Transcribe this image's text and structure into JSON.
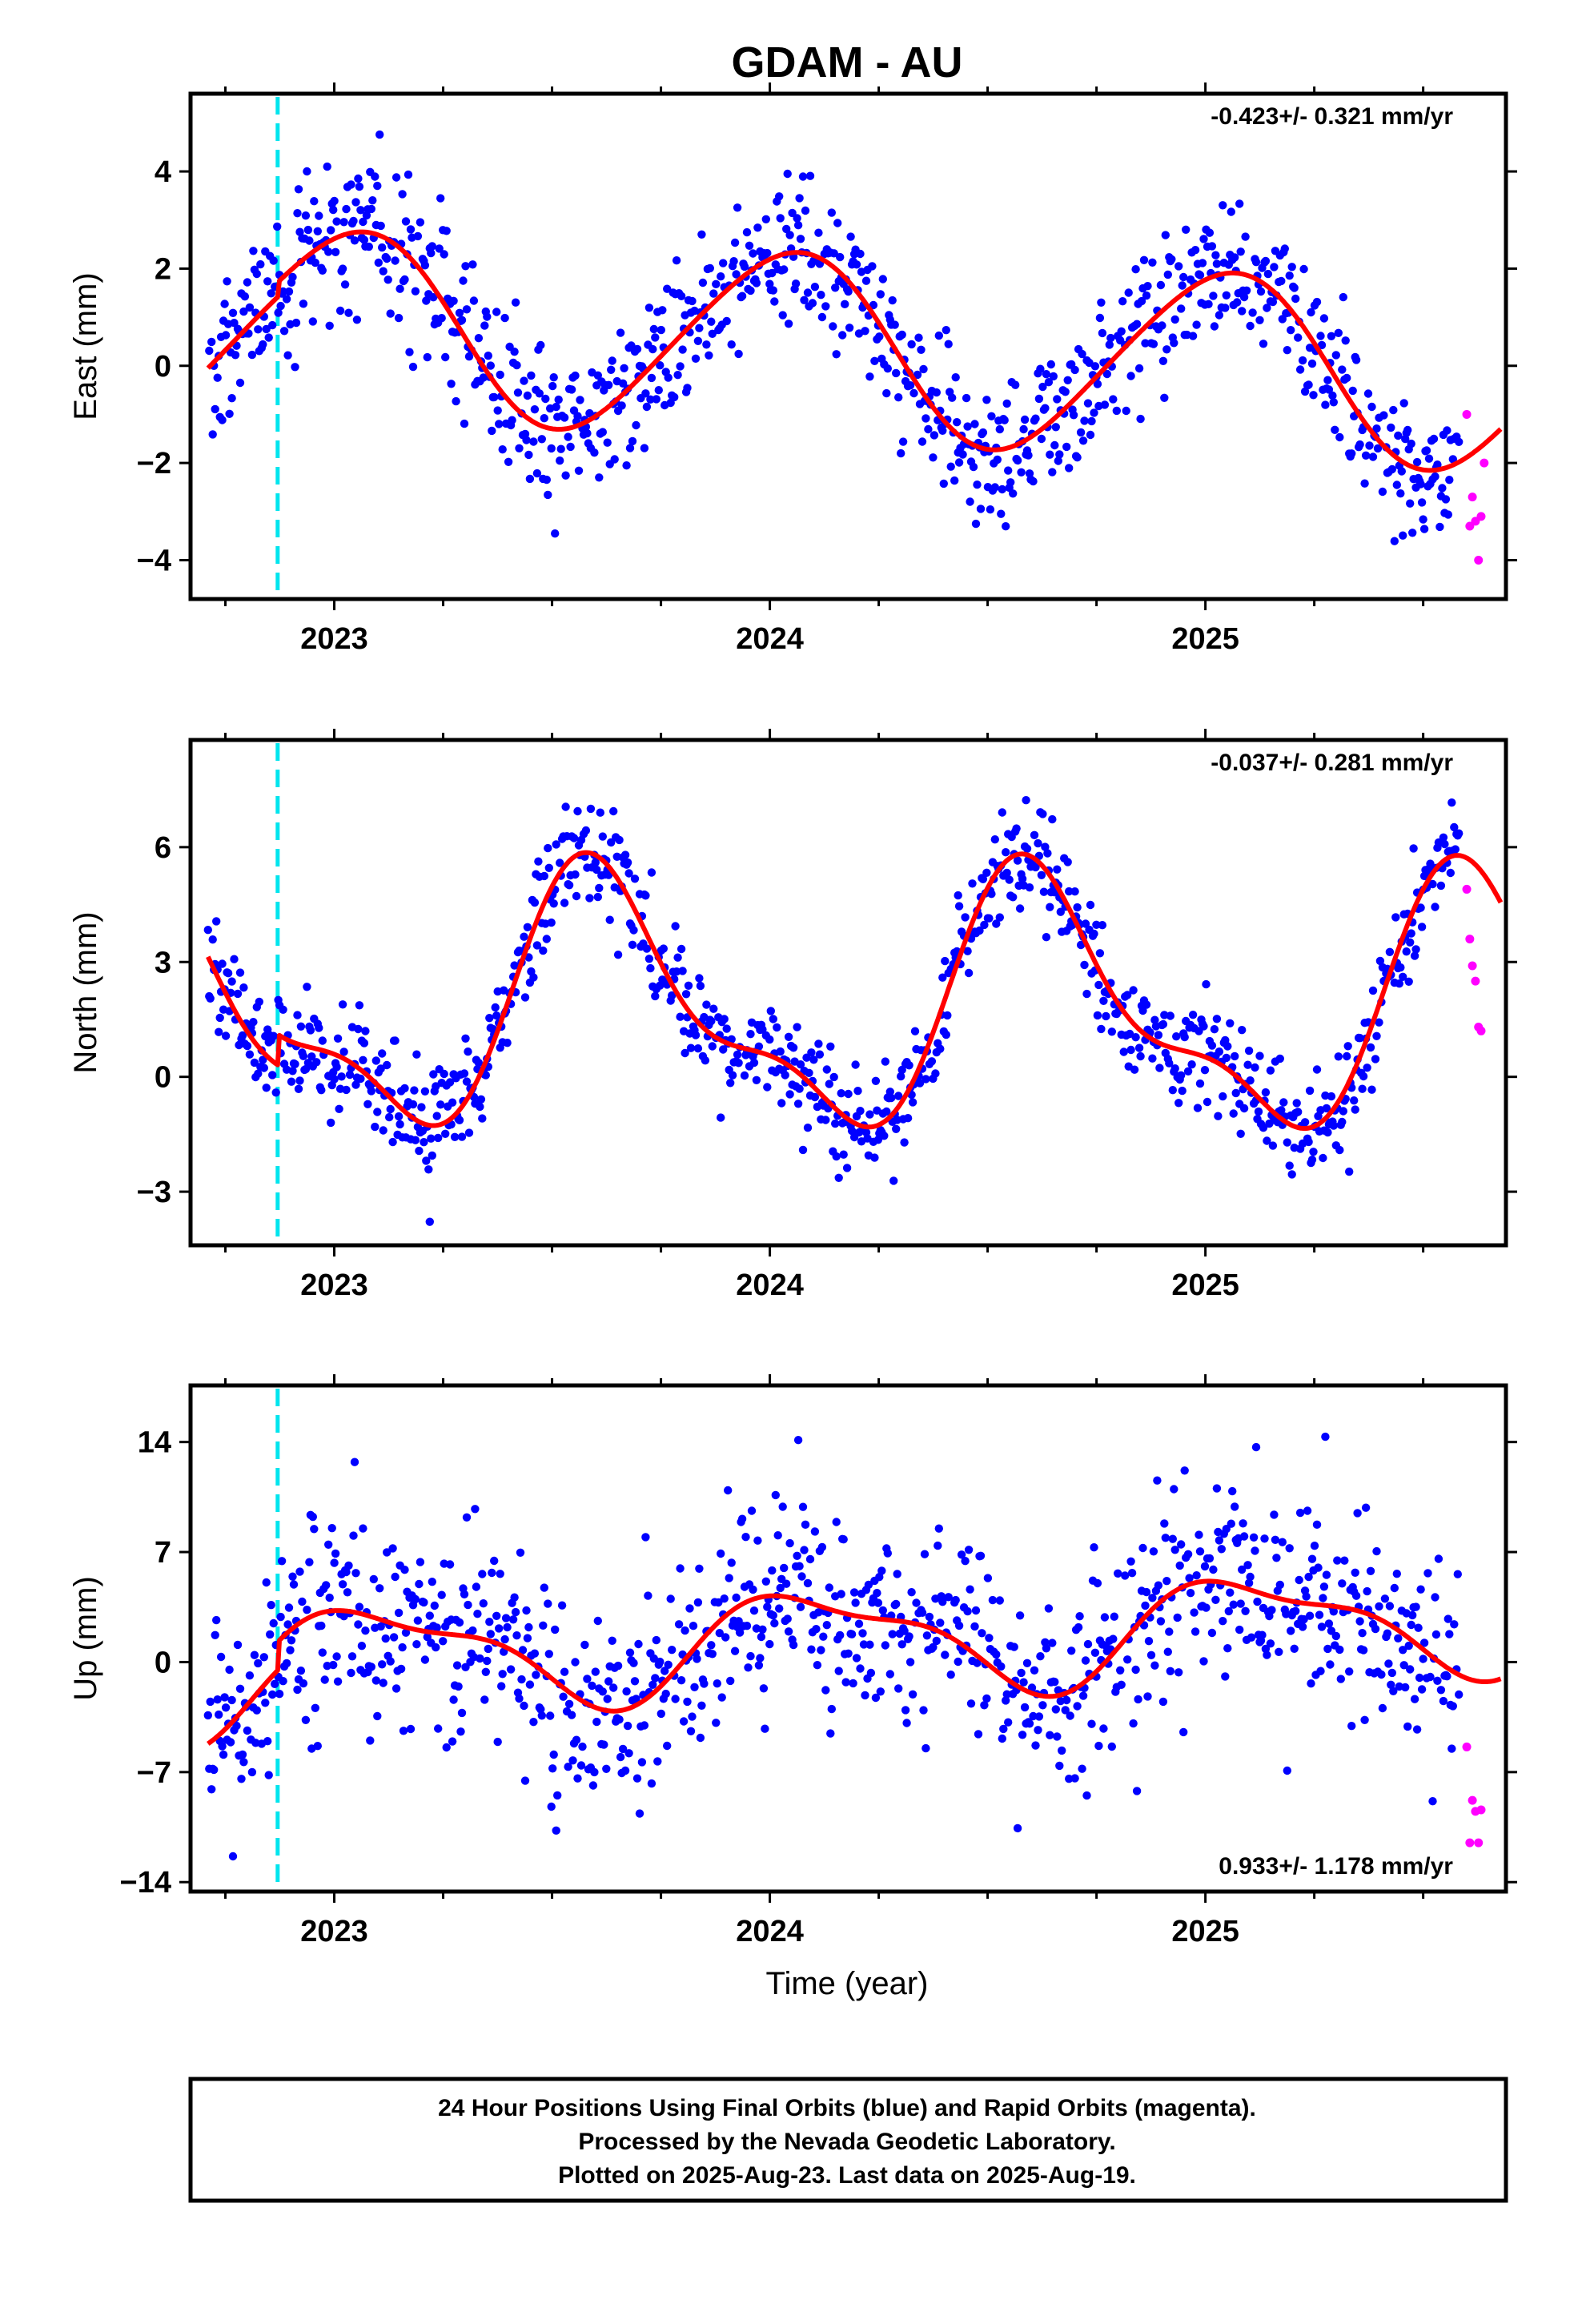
{
  "title": "GDAM - AU",
  "xlabel": "Time (year)",
  "x_tick_labels": [
    "2023",
    "2024",
    "2025"
  ],
  "colors": {
    "final_orbits": "#0000ff",
    "rapid_orbits": "#ff00ff",
    "model_fit": "#ff0000",
    "equipment_change": "#00e5ee"
  },
  "caption": [
    "24 Hour Positions Using Final Orbits (blue) and Rapid Orbits (magenta).",
    "Processed by the Nevada Geodetic Laboratory.",
    "Plotted on 2025-Aug-23. Last data on 2025-Aug-19."
  ],
  "chart_data": [
    {
      "type": "scatter",
      "ylabel": "East (mm)",
      "rate_text": "-0.423+/- 0.321 mm/yr",
      "xlim": [
        2022.67,
        2025.69
      ],
      "ylim": [
        -4.8,
        5.6
      ],
      "yticks": [
        -4,
        -2,
        0,
        2,
        4
      ],
      "ytick_labels": [
        "−4",
        "−2",
        "0",
        "2",
        "4"
      ],
      "xticks": [
        2023,
        2024,
        2025
      ],
      "grid": false,
      "equipment_change_x": 2022.87,
      "offset_at": 2022.87,
      "model": {
        "offset": 0.1,
        "slope": -0.423,
        "step": 0.3,
        "step_at": 2022.87,
        "annual_cos": 1.85,
        "annual_sin": 0.45,
        "semi_cos": -0.1,
        "semi_sin": 0.15
      },
      "noise_sigma": 0.75,
      "final_orbits_end": 2025.583,
      "rapid_points": [
        [
          2025.6,
          -1.0
        ],
        [
          2025.607,
          -3.3
        ],
        [
          2025.613,
          -2.7
        ],
        [
          2025.62,
          -3.2
        ],
        [
          2025.627,
          -4.0
        ],
        [
          2025.633,
          -3.1
        ],
        [
          2025.64,
          -2.0
        ]
      ]
    },
    {
      "type": "scatter",
      "ylabel": "North (mm)",
      "rate_text": "-0.037+/- 0.281 mm/yr",
      "xlim": [
        2022.67,
        2025.69
      ],
      "ylim": [
        -4.4,
        8.8
      ],
      "yticks": [
        -3,
        0,
        3,
        6
      ],
      "ytick_labels": [
        "−3",
        "0",
        "3",
        "6"
      ],
      "xticks": [
        2023,
        2024,
        2025
      ],
      "grid": false,
      "equipment_change_x": 2022.87,
      "model": {
        "offset": 1.0,
        "slope": -0.037,
        "step": 0.8,
        "step_at": 2022.87,
        "annual_cos": -2.2,
        "annual_sin": -2.1,
        "semi_cos": 0.95,
        "semi_sin": 0.7
      },
      "noise_sigma": 0.7,
      "final_orbits_end": 2025.583,
      "rapid_points": [
        [
          2025.6,
          4.9
        ],
        [
          2025.607,
          3.6
        ],
        [
          2025.613,
          2.9
        ],
        [
          2025.62,
          2.5
        ],
        [
          2025.627,
          1.3
        ],
        [
          2025.633,
          1.2
        ]
      ]
    },
    {
      "type": "scatter",
      "ylabel": "Up (mm)",
      "rate_text": "0.933+/- 1.178 mm/yr",
      "xlim": [
        2022.67,
        2025.69
      ],
      "ylim": [
        -14.6,
        17.6
      ],
      "yticks": [
        -14,
        -7,
        0,
        7,
        14
      ],
      "ytick_labels": [
        "−14",
        "−7",
        "0",
        "7",
        "14"
      ],
      "xticks": [
        2023,
        2024,
        2025
      ],
      "grid": false,
      "equipment_change_x": 2022.87,
      "model": {
        "offset": -0.5,
        "slope": 0.933,
        "step": 1.8,
        "step_at": 2022.87,
        "annual_cos": 2.4,
        "annual_sin": 1.9,
        "semi_cos": 0.6,
        "semi_sin": -0.9
      },
      "noise_sigma": 3.2,
      "final_orbits_end": 2025.583,
      "rapid_points": [
        [
          2025.6,
          -5.4
        ],
        [
          2025.607,
          -11.5
        ],
        [
          2025.613,
          -8.8
        ],
        [
          2025.62,
          -9.5
        ],
        [
          2025.627,
          -11.5
        ],
        [
          2025.633,
          -9.4
        ]
      ]
    }
  ]
}
